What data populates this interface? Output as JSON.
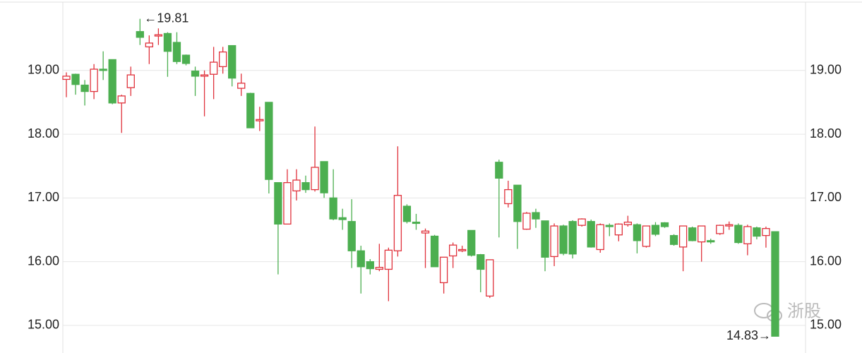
{
  "chart_data": {
    "type": "candlestick",
    "up_color": "#e0323c",
    "down_color": "#4caf50",
    "ylim": [
      14.6,
      20.05
    ],
    "yticks": [
      {
        "value": 15,
        "label": "15.00"
      },
      {
        "value": 16,
        "label": "16.00"
      },
      {
        "value": 17,
        "label": "17.00"
      },
      {
        "value": 18,
        "label": "18.00"
      },
      {
        "value": 19,
        "label": "19.00"
      }
    ],
    "grid": true,
    "open": [
      18.86,
      18.94,
      18.77,
      18.67,
      19.02,
      19.17,
      18.49,
      18.73,
      19.61,
      19.37,
      19.54,
      19.58,
      19.44,
      19.24,
      18.99,
      18.91,
      18.94,
      19.06,
      19.39,
      18.72,
      18.64,
      18.21,
      18.5,
      17.24,
      16.59,
      17.11,
      17.24,
      17.13,
      17.57,
      17.0,
      16.69,
      16.63,
      16.17,
      16.0,
      15.88,
      15.88,
      16.17,
      16.87,
      16.62,
      16.45,
      16.4,
      15.67,
      16.09,
      16.17,
      16.49,
      16.11,
      15.46,
      17.56,
      16.91,
      17.2,
      16.51,
      16.77,
      16.64,
      16.08,
      16.56,
      16.63,
      16.57,
      16.63,
      16.19,
      16.57,
      16.42,
      16.58,
      16.58,
      16.24,
      16.57,
      16.61,
      16.41,
      16.23,
      16.53,
      16.31,
      16.33,
      16.44,
      16.56,
      16.57,
      16.28,
      16.53,
      16.41,
      16.47
    ],
    "high": [
      18.97,
      18.95,
      18.85,
      19.1,
      19.3,
      19.17,
      18.62,
      19.06,
      19.81,
      19.55,
      19.66,
      19.6,
      19.6,
      19.25,
      19.06,
      19.0,
      19.37,
      19.37,
      19.39,
      18.95,
      18.65,
      18.43,
      18.5,
      17.24,
      17.45,
      17.45,
      17.35,
      18.12,
      17.57,
      17.45,
      16.83,
      16.98,
      16.25,
      16.04,
      16.28,
      16.22,
      17.81,
      16.9,
      16.75,
      16.52,
      16.42,
      16.07,
      16.3,
      16.25,
      16.49,
      16.12,
      16.03,
      17.6,
      17.27,
      17.2,
      16.78,
      16.83,
      16.64,
      16.6,
      16.58,
      16.65,
      16.68,
      16.66,
      16.6,
      16.6,
      16.6,
      16.72,
      16.6,
      16.56,
      16.62,
      16.62,
      16.43,
      16.56,
      16.55,
      16.56,
      16.36,
      16.58,
      16.63,
      16.6,
      16.58,
      16.55,
      16.55,
      16.47
    ],
    "low": [
      18.58,
      18.62,
      18.45,
      18.55,
      18.85,
      18.47,
      18.02,
      18.6,
      19.4,
      19.1,
      19.4,
      18.9,
      19.1,
      19.08,
      18.6,
      18.28,
      18.55,
      18.95,
      18.75,
      18.6,
      18.1,
      18.05,
      17.07,
      15.8,
      16.59,
      16.96,
      17.08,
      17.1,
      17.0,
      16.65,
      16.5,
      15.9,
      15.5,
      15.8,
      15.85,
      15.38,
      16.08,
      16.6,
      16.5,
      15.9,
      15.92,
      15.5,
      15.9,
      16.15,
      16.08,
      15.52,
      15.43,
      16.38,
      16.85,
      16.2,
      16.5,
      16.53,
      15.85,
      15.93,
      16.1,
      16.05,
      16.55,
      16.22,
      16.14,
      16.4,
      16.32,
      16.55,
      16.13,
      16.22,
      16.4,
      16.53,
      16.25,
      15.85,
      16.32,
      16.0,
      16.28,
      16.42,
      16.5,
      16.28,
      16.1,
      16.35,
      16.22,
      14.83
    ],
    "close": [
      18.91,
      18.78,
      18.67,
      19.02,
      19.0,
      18.49,
      18.6,
      18.93,
      19.52,
      19.43,
      19.56,
      19.3,
      19.14,
      19.11,
      18.91,
      18.93,
      19.13,
      19.29,
      18.88,
      18.8,
      18.1,
      18.23,
      17.29,
      16.59,
      17.24,
      17.28,
      17.13,
      17.48,
      17.08,
      16.67,
      16.66,
      16.17,
      15.92,
      15.89,
      15.91,
      16.18,
      17.04,
      16.63,
      16.6,
      16.48,
      15.92,
      16.07,
      16.26,
      16.19,
      16.1,
      15.88,
      16.03,
      17.31,
      17.13,
      16.63,
      16.76,
      16.67,
      16.07,
      16.56,
      16.13,
      16.12,
      16.67,
      16.23,
      16.58,
      16.55,
      16.59,
      16.62,
      16.33,
      16.56,
      16.43,
      16.55,
      16.27,
      16.56,
      16.33,
      16.56,
      16.31,
      16.57,
      16.58,
      16.3,
      16.55,
      16.4,
      16.52,
      14.83
    ],
    "annotations": {
      "max": "←19.81",
      "min": "14.83→"
    },
    "watermark": "浙股"
  }
}
